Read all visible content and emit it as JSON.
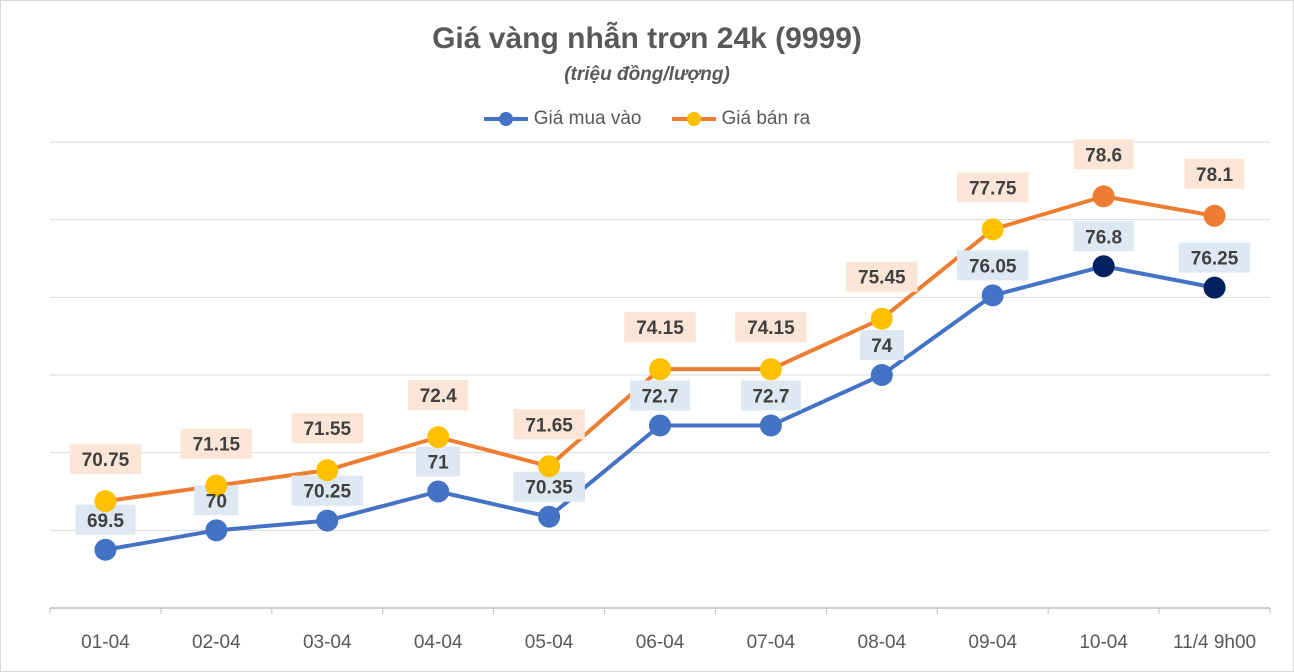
{
  "chart_data": {
    "type": "line",
    "title": "Giá vàng nhẫn trơn 24k (9999)",
    "subtitle": "(triệu đồng/lượng)",
    "categories": [
      "01-04",
      "02-04",
      "03-04",
      "04-04",
      "05-04",
      "06-04",
      "07-04",
      "08-04",
      "09-04",
      "10-04",
      "11/4 9h00"
    ],
    "series": [
      {
        "name": "Giá mua vào",
        "values": [
          69.5,
          70,
          70.25,
          71,
          70.35,
          72.7,
          72.7,
          74,
          76.05,
          76.8,
          76.25
        ],
        "labels": [
          "69.5",
          "70",
          "70.25",
          "71",
          "70.35",
          "72.7",
          "72.7",
          "74",
          "76.05",
          "76.8",
          "76.25"
        ],
        "line_color": "#4472c4",
        "marker_colors": [
          "#4472c4",
          "#4472c4",
          "#4472c4",
          "#4472c4",
          "#4472c4",
          "#4472c4",
          "#4472c4",
          "#4472c4",
          "#4472c4",
          "#002060",
          "#002060"
        ],
        "label_bg": "#dde8f3"
      },
      {
        "name": "Giá bán ra",
        "values": [
          70.75,
          71.15,
          71.55,
          72.4,
          71.65,
          74.15,
          74.15,
          75.45,
          77.75,
          78.6,
          78.1
        ],
        "labels": [
          "70.75",
          "71.15",
          "71.55",
          "72.4",
          "71.65",
          "74.15",
          "74.15",
          "75.45",
          "77.75",
          "78.6",
          "78.1"
        ],
        "line_color": "#ed7d31",
        "marker_colors": [
          "#ffc000",
          "#ffc000",
          "#ffc000",
          "#ffc000",
          "#ffc000",
          "#ffc000",
          "#ffc000",
          "#ffc000",
          "#ffc000",
          "#ed7d31",
          "#ed7d31"
        ],
        "label_bg": "#fbe5d6"
      }
    ],
    "ylim": [
      68,
      80
    ],
    "y_gridlines": [
      68,
      70,
      72,
      74,
      76,
      78,
      80
    ],
    "y_tick_labels_shown": false,
    "grid": true,
    "legend_position": "top"
  }
}
